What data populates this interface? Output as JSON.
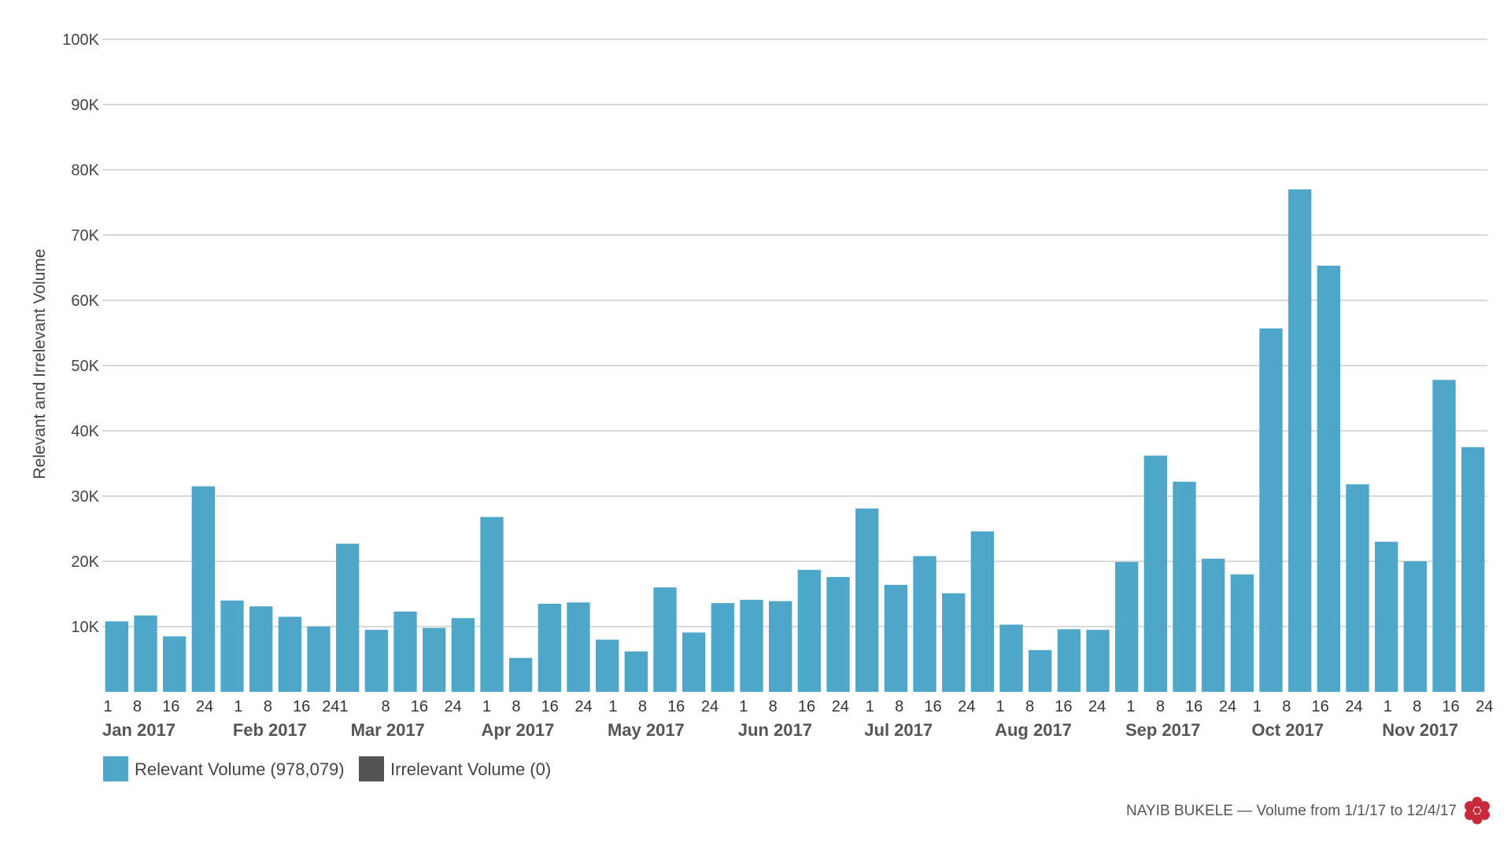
{
  "chart_data": {
    "type": "bar",
    "title": "",
    "xlabel": "",
    "ylabel": "Relevant and Irrelevant Volume",
    "ylim": [
      0,
      100000
    ],
    "y_ticks": [
      {
        "value": 10000,
        "label": "10K"
      },
      {
        "value": 20000,
        "label": "20K"
      },
      {
        "value": 30000,
        "label": "30K"
      },
      {
        "value": 40000,
        "label": "40K"
      },
      {
        "value": 50000,
        "label": "50K"
      },
      {
        "value": 60000,
        "label": "60K"
      },
      {
        "value": 70000,
        "label": "70K"
      },
      {
        "value": 80000,
        "label": "80K"
      },
      {
        "value": 90000,
        "label": "90K"
      },
      {
        "value": 100000,
        "label": "100K"
      }
    ],
    "grid": true,
    "x_tick_labels": [
      "1",
      "8",
      "16",
      "24",
      "1",
      "8",
      "16",
      "241",
      "8",
      "16",
      "24",
      "1",
      "8",
      "16",
      "24",
      "1",
      "8",
      "16",
      "24",
      "1",
      "8",
      "16",
      "24",
      "1",
      "8",
      "16",
      "24",
      "1",
      "8",
      "16",
      "24",
      "1",
      "8",
      "16",
      "24",
      "1",
      "8",
      "16",
      "24",
      "1",
      "8",
      "16",
      "24"
    ],
    "x_tick_days": [
      0,
      7,
      15,
      23,
      31,
      38,
      46,
      54,
      66,
      74,
      82,
      90,
      97,
      105,
      113,
      120,
      127,
      135,
      143,
      151,
      158,
      166,
      174,
      181,
      188,
      196,
      204,
      212,
      219,
      227,
      235,
      243,
      250,
      258,
      266,
      273,
      280,
      288,
      296,
      304,
      311,
      319,
      327
    ],
    "month_labels": [
      {
        "label": "Jan 2017",
        "day": 0
      },
      {
        "label": "Feb 2017",
        "day": 31
      },
      {
        "label": "Mar 2017",
        "day": 59
      },
      {
        "label": "Apr 2017",
        "day": 90
      },
      {
        "label": "May 2017",
        "day": 120
      },
      {
        "label": "Jun 2017",
        "day": 151
      },
      {
        "label": "Jul 2017",
        "day": 181
      },
      {
        "label": "Aug 2017",
        "day": 212
      },
      {
        "label": "Sep 2017",
        "day": 243
      },
      {
        "label": "Oct 2017",
        "day": 273
      },
      {
        "label": "Nov 2017",
        "day": 304
      }
    ],
    "x_domain_days": [
      0,
      329
    ],
    "series": [
      {
        "name": "Relevant Volume",
        "color": "#4ea6c8",
        "values": [
          10800,
          11700,
          8500,
          31500,
          14000,
          13100,
          11500,
          10000,
          22700,
          9500,
          12300,
          9800,
          11300,
          26800,
          5200,
          13500,
          13700,
          8000,
          6200,
          16000,
          9100,
          13600,
          14100,
          13900,
          18700,
          17600,
          28100,
          16400,
          20800,
          15100,
          24600,
          10300,
          6400,
          9600,
          9500,
          19900,
          36200,
          32200,
          20400,
          18000,
          55700,
          77000,
          65300,
          31800,
          23000,
          20000,
          47800,
          37500
        ]
      },
      {
        "name": "Irrelevant Volume",
        "color": "#555555",
        "values": []
      }
    ],
    "legend": [
      {
        "label": "Relevant Volume (978,079)",
        "color": "#4ea6c8"
      },
      {
        "label": "Irrelevant Volume (0)",
        "color": "#555555"
      }
    ],
    "legend_position": "bottom-left"
  },
  "footer": {
    "text": "NAYIB BUKELE — Volume from 1/1/17 to 12/4/17",
    "logo_icon": "red-flower-logo-icon",
    "logo_color": "#c8293b"
  }
}
